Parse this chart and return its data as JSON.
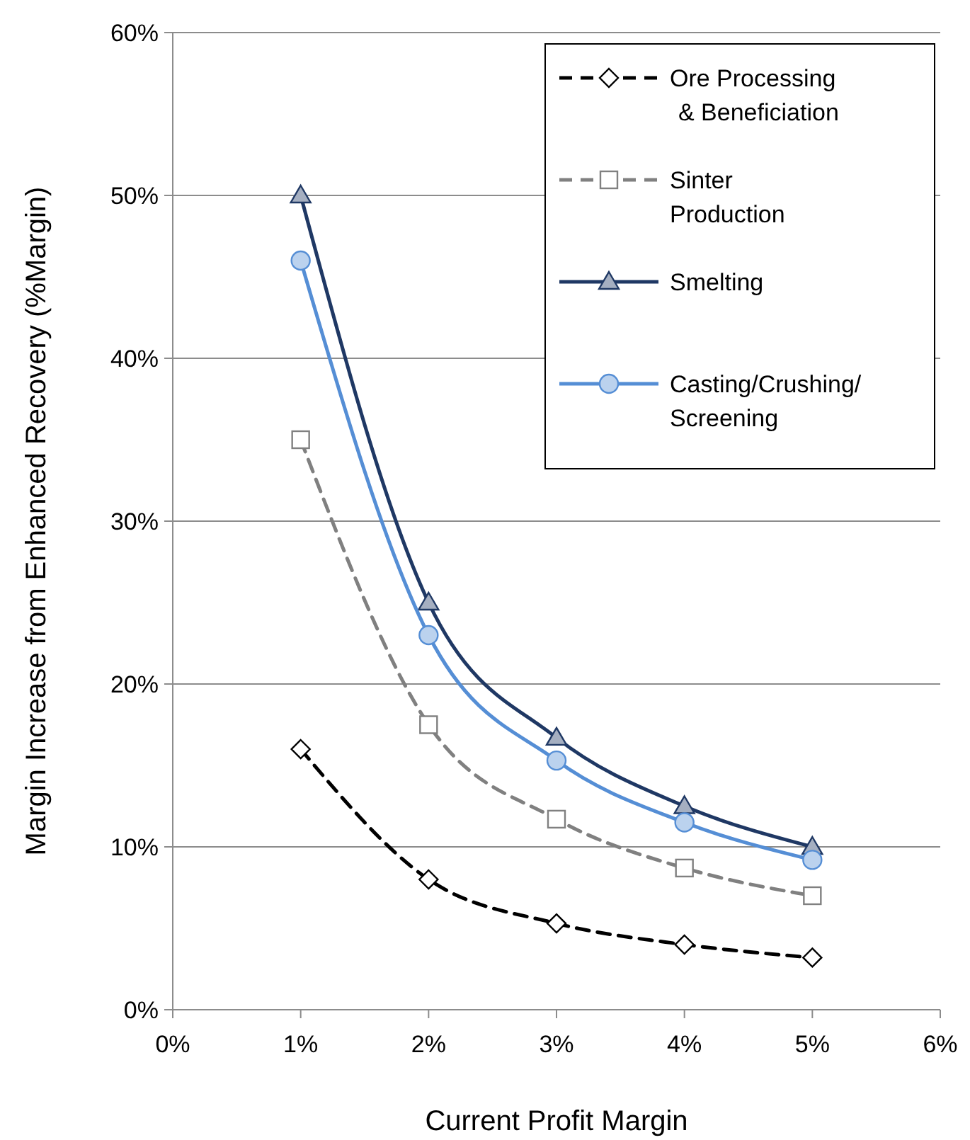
{
  "chart_data": {
    "type": "line",
    "xlabel": "Current Profit Margin",
    "ylabel": "Margin Increase from Enhanced Recovery (%Margin)",
    "x": [
      1,
      2,
      3,
      4,
      5
    ],
    "series": [
      {
        "name": "Ore Processing & Beneficiation",
        "color": "#000000",
        "marker": "diamond",
        "line_style": "dashed",
        "values": [
          16,
          8,
          5.3,
          4,
          3.2
        ]
      },
      {
        "name": "Sinter Production",
        "color": "#808080",
        "marker": "square",
        "line_style": "dashed",
        "values": [
          35,
          17.5,
          11.7,
          8.7,
          7
        ]
      },
      {
        "name": "Smelting",
        "color": "#1f3864",
        "marker": "triangle",
        "line_style": "solid",
        "values": [
          50,
          25,
          16.7,
          12.5,
          10
        ]
      },
      {
        "name": "Casting/Crushing/ Screening",
        "color": "#558ed5",
        "marker": "circle",
        "line_style": "solid",
        "values": [
          46,
          23,
          15.3,
          11.5,
          9.2
        ]
      }
    ],
    "xlim": [
      0,
      6
    ],
    "xticks": [
      {
        "value": 0,
        "label": "0%"
      },
      {
        "value": 1,
        "label": "1%"
      },
      {
        "value": 2,
        "label": "2%"
      },
      {
        "value": 3,
        "label": "3%"
      },
      {
        "value": 4,
        "label": "4%"
      },
      {
        "value": 5,
        "label": "5%"
      },
      {
        "value": 6,
        "label": "6%"
      }
    ],
    "ylim": [
      0,
      60
    ],
    "yticks": [
      {
        "value": 0,
        "label": "0%"
      },
      {
        "value": 10,
        "label": "10%"
      },
      {
        "value": 20,
        "label": "20%"
      },
      {
        "value": 30,
        "label": "30%"
      },
      {
        "value": 40,
        "label": "40%"
      },
      {
        "value": 50,
        "label": "50%"
      },
      {
        "value": 60,
        "label": "60%"
      }
    ],
    "grid": "y",
    "legend": "top right"
  }
}
